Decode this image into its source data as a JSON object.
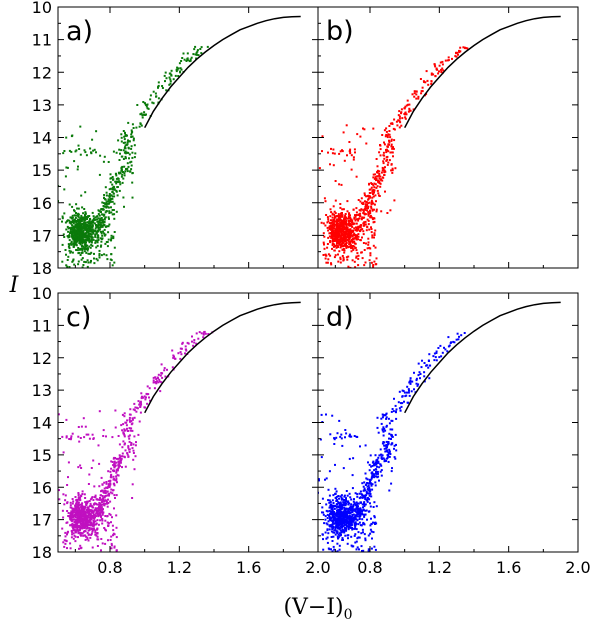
{
  "chart_data": {
    "type": "scatter",
    "xlabel": "(V−I)",
    "xlabel_sub": "0",
    "ylabel": "I",
    "xlim": [
      0.5,
      2.0
    ],
    "ylim": [
      18,
      10
    ],
    "y_inverted": true,
    "x_ticks": [
      0.8,
      1.2,
      1.6,
      2.0
    ],
    "x_tick_labels": [
      "0.8",
      "1.2",
      "1.6",
      "2.0"
    ],
    "y_ticks": [
      10,
      11,
      12,
      13,
      14,
      15,
      16,
      17,
      18
    ],
    "y_tick_labels": [
      "10",
      "11",
      "12",
      "13",
      "14",
      "15",
      "16",
      "17",
      "18"
    ],
    "isochrone": {
      "color": "#000000",
      "points": [
        [
          1.0,
          13.7
        ],
        [
          1.05,
          13.2
        ],
        [
          1.1,
          12.8
        ],
        [
          1.15,
          12.45
        ],
        [
          1.2,
          12.15
        ],
        [
          1.25,
          11.85
        ],
        [
          1.3,
          11.6
        ],
        [
          1.35,
          11.38
        ],
        [
          1.4,
          11.18
        ],
        [
          1.45,
          11.0
        ],
        [
          1.5,
          10.85
        ],
        [
          1.55,
          10.7
        ],
        [
          1.6,
          10.6
        ],
        [
          1.65,
          10.5
        ],
        [
          1.7,
          10.42
        ],
        [
          1.75,
          10.36
        ],
        [
          1.8,
          10.32
        ],
        [
          1.85,
          10.3
        ],
        [
          1.9,
          10.29
        ]
      ]
    },
    "panels": [
      {
        "label": "a)",
        "color": "#0a7a0a"
      },
      {
        "label": "b)",
        "color": "#ff0000"
      },
      {
        "label": "c)",
        "color": "#c010c0"
      },
      {
        "label": "d)",
        "color": "#0000ff"
      }
    ]
  }
}
